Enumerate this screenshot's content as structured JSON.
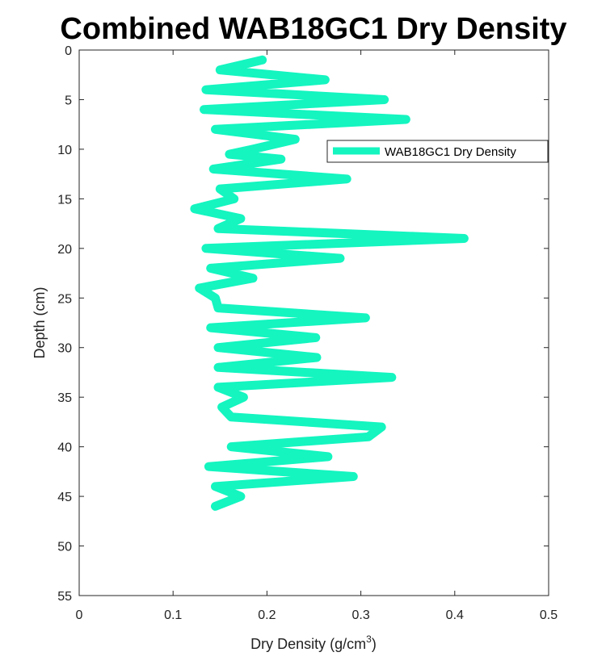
{
  "chart_data": {
    "type": "line",
    "title": "Combined WAB18GC1 Dry Density",
    "xlabel": "Dry Density (g/cm",
    "xlabel_superscript": "3",
    "xlabel_suffix": ")",
    "ylabel": "Depth (cm)",
    "xlim": [
      0,
      0.5
    ],
    "ylim": [
      0,
      55
    ],
    "y_reversed": true,
    "grid": false,
    "legend_position": "top-right",
    "xticks": [
      "0",
      "0.1",
      "0.2",
      "0.3",
      "0.4",
      "0.5"
    ],
    "yticks": [
      "0",
      "5",
      "10",
      "15",
      "20",
      "25",
      "30",
      "35",
      "40",
      "45",
      "50",
      "55"
    ],
    "series": [
      {
        "name": "WAB18GC1 Dry Density",
        "color": "#14f5c0",
        "points": [
          [
            0.195,
            1
          ],
          [
            0.15,
            2
          ],
          [
            0.262,
            3
          ],
          [
            0.135,
            4
          ],
          [
            0.325,
            5
          ],
          [
            0.133,
            6
          ],
          [
            0.348,
            7
          ],
          [
            0.145,
            8
          ],
          [
            0.23,
            9
          ],
          [
            0.185,
            10
          ],
          [
            0.16,
            10.5
          ],
          [
            0.215,
            11
          ],
          [
            0.143,
            12
          ],
          [
            0.285,
            13
          ],
          [
            0.15,
            14
          ],
          [
            0.165,
            15
          ],
          [
            0.123,
            16
          ],
          [
            0.172,
            17
          ],
          [
            0.148,
            18
          ],
          [
            0.41,
            19
          ],
          [
            0.135,
            20
          ],
          [
            0.278,
            21
          ],
          [
            0.14,
            22
          ],
          [
            0.185,
            23
          ],
          [
            0.128,
            24
          ],
          [
            0.145,
            25
          ],
          [
            0.148,
            26
          ],
          [
            0.305,
            27
          ],
          [
            0.14,
            28
          ],
          [
            0.252,
            29
          ],
          [
            0.148,
            30
          ],
          [
            0.253,
            31
          ],
          [
            0.148,
            32
          ],
          [
            0.333,
            33
          ],
          [
            0.148,
            34
          ],
          [
            0.175,
            35
          ],
          [
            0.152,
            36
          ],
          [
            0.162,
            37
          ],
          [
            0.322,
            38
          ],
          [
            0.308,
            39
          ],
          [
            0.162,
            40
          ],
          [
            0.265,
            41
          ],
          [
            0.138,
            42
          ],
          [
            0.292,
            43
          ],
          [
            0.145,
            44
          ],
          [
            0.172,
            45
          ],
          [
            0.145,
            46
          ]
        ]
      }
    ]
  }
}
